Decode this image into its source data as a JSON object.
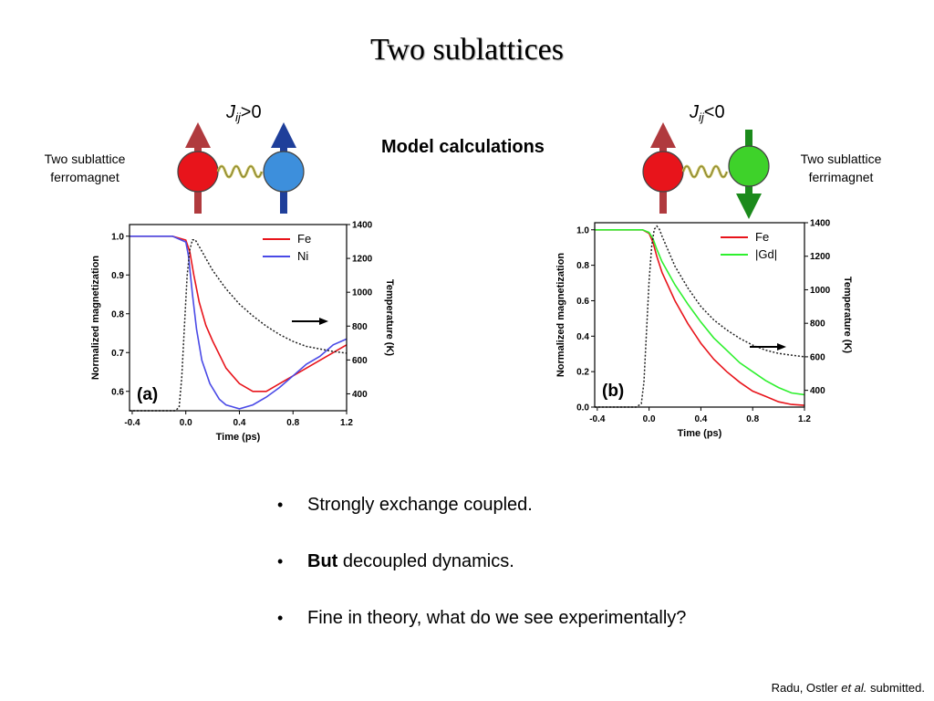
{
  "slide": {
    "title": "Two sublattices",
    "model_label": "Model calculations",
    "left": {
      "j_symbol": "J",
      "j_subscript": "ij",
      "j_relation": ">0",
      "description_line1": "Two sublattice",
      "description_line2": "ferromagnet",
      "spin_colors": {
        "atom1": "#e8141b",
        "atom2": "#3d8fdc",
        "arrow1": "#b03a3e",
        "arrow2": "#1f3f9a",
        "spring": "#c9c05a"
      }
    },
    "right": {
      "j_symbol": "J",
      "j_subscript": "ij",
      "j_relation": "<0",
      "description_line1": "Two sublattice",
      "description_line2": "ferrimagnet",
      "spin_colors": {
        "atom1": "#e8141b",
        "atom2": "#3ed22a",
        "arrow1": "#b03a3e",
        "arrow2": "#1b8a1b",
        "spring": "#c9c05a"
      }
    },
    "bullets": [
      {
        "bold": "",
        "text": "Strongly exchange coupled."
      },
      {
        "bold": "But",
        "text": " decoupled dynamics."
      },
      {
        "bold": "",
        "text": "Fine in theory, what do we see experimentally?"
      }
    ],
    "citation": {
      "prefix": "Radu, Ostler ",
      "italic": "et al.",
      "suffix": " submitted."
    }
  },
  "chart_data": [
    {
      "type": "line",
      "panel_label": "(a)",
      "xlabel": "Time (ps)",
      "ylabel": "Normalized magnetization",
      "y2label": "Temperature (K)",
      "xlim": [
        -0.42,
        1.2
      ],
      "ylim": [
        0.55,
        1.03
      ],
      "y2lim": [
        300,
        1400
      ],
      "xticks": [
        -0.4,
        0.0,
        0.4,
        0.8,
        1.2
      ],
      "yticks": [
        0.6,
        0.7,
        0.8,
        0.9,
        1.0
      ],
      "y2ticks": [
        400,
        600,
        800,
        1000,
        1200,
        1400
      ],
      "legend_position": "top-right",
      "series": [
        {
          "name": "Fe",
          "color": "#e8141b",
          "axis": "left",
          "x": [
            -0.42,
            -0.1,
            0.0,
            0.03,
            0.06,
            0.1,
            0.15,
            0.2,
            0.3,
            0.4,
            0.5,
            0.6,
            0.7,
            0.8,
            0.9,
            1.0,
            1.1,
            1.2
          ],
          "y": [
            1.0,
            1.0,
            0.99,
            0.96,
            0.9,
            0.83,
            0.77,
            0.73,
            0.66,
            0.62,
            0.6,
            0.6,
            0.62,
            0.64,
            0.66,
            0.68,
            0.7,
            0.72
          ]
        },
        {
          "name": "Ni",
          "color": "#4a4ae6",
          "axis": "left",
          "x": [
            -0.42,
            -0.1,
            0.0,
            0.02,
            0.05,
            0.08,
            0.12,
            0.18,
            0.25,
            0.3,
            0.4,
            0.5,
            0.6,
            0.7,
            0.8,
            0.9,
            1.0,
            1.1,
            1.2
          ],
          "y": [
            1.0,
            1.0,
            0.985,
            0.95,
            0.85,
            0.76,
            0.68,
            0.62,
            0.58,
            0.565,
            0.555,
            0.565,
            0.585,
            0.61,
            0.64,
            0.67,
            0.69,
            0.72,
            0.735
          ]
        },
        {
          "name": "",
          "color": "#222222",
          "axis": "right",
          "dash": "2,2",
          "x": [
            -0.42,
            -0.08,
            -0.05,
            -0.03,
            -0.01,
            0.01,
            0.03,
            0.05,
            0.07,
            0.1,
            0.15,
            0.2,
            0.3,
            0.4,
            0.5,
            0.6,
            0.7,
            0.8,
            0.9,
            1.0,
            1.1,
            1.2
          ],
          "y": [
            300,
            300,
            320,
            500,
            800,
            1100,
            1250,
            1310,
            1310,
            1270,
            1200,
            1130,
            1020,
            930,
            860,
            800,
            750,
            710,
            680,
            665,
            650,
            640
          ]
        }
      ]
    },
    {
      "type": "line",
      "panel_label": "(b)",
      "xlabel": "Time (ps)",
      "ylabel": "Normalized magnetization",
      "y2label": "Temperature (K)",
      "xlim": [
        -0.42,
        1.2
      ],
      "ylim": [
        0.0,
        1.04
      ],
      "y2lim": [
        300,
        1400
      ],
      "xticks": [
        -0.4,
        0.0,
        0.4,
        0.8,
        1.2
      ],
      "yticks": [
        0.0,
        0.2,
        0.4,
        0.6,
        0.8,
        1.0
      ],
      "y2ticks": [
        400,
        600,
        800,
        1000,
        1200,
        1400
      ],
      "legend_position": "top-right",
      "series": [
        {
          "name": "Fe",
          "color": "#e8141b",
          "axis": "left",
          "x": [
            -0.42,
            -0.05,
            0.0,
            0.03,
            0.06,
            0.1,
            0.2,
            0.3,
            0.4,
            0.5,
            0.6,
            0.7,
            0.8,
            0.9,
            1.0,
            1.1,
            1.2
          ],
          "y": [
            1.0,
            1.0,
            0.98,
            0.93,
            0.85,
            0.76,
            0.6,
            0.47,
            0.36,
            0.27,
            0.2,
            0.14,
            0.09,
            0.06,
            0.03,
            0.015,
            0.01
          ]
        },
        {
          "name": "|Gd|",
          "color": "#2ef02e",
          "axis": "left",
          "x": [
            -0.42,
            -0.05,
            0.0,
            0.03,
            0.06,
            0.1,
            0.2,
            0.3,
            0.4,
            0.5,
            0.6,
            0.7,
            0.8,
            0.9,
            1.0,
            1.1,
            1.2
          ],
          "y": [
            1.0,
            1.0,
            0.985,
            0.95,
            0.89,
            0.82,
            0.69,
            0.58,
            0.48,
            0.39,
            0.32,
            0.25,
            0.2,
            0.15,
            0.11,
            0.08,
            0.07
          ]
        },
        {
          "name": "",
          "color": "#222222",
          "axis": "right",
          "dash": "2,2",
          "x": [
            -0.42,
            -0.1,
            -0.06,
            -0.04,
            -0.02,
            0.0,
            0.02,
            0.04,
            0.06,
            0.08,
            0.1,
            0.15,
            0.2,
            0.3,
            0.4,
            0.5,
            0.6,
            0.7,
            0.8,
            0.9,
            1.0,
            1.1,
            1.2
          ],
          "y": [
            300,
            300,
            320,
            450,
            750,
            1050,
            1260,
            1360,
            1380,
            1360,
            1320,
            1230,
            1140,
            1010,
            900,
            820,
            760,
            710,
            670,
            640,
            620,
            610,
            600
          ]
        }
      ]
    }
  ]
}
